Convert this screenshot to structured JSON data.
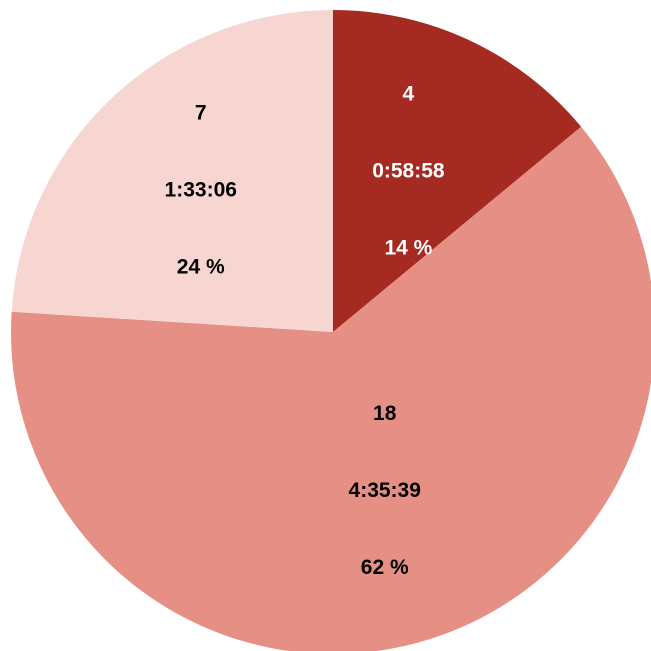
{
  "chart_data": {
    "type": "pie",
    "slices": [
      {
        "count": "4",
        "duration": "0:58:58",
        "percent_label": "14 %",
        "value": 14,
        "color": "#a52a22",
        "text_color": "#ffffff"
      },
      {
        "count": "18",
        "duration": "4:35:39",
        "percent_label": "62 %",
        "value": 62,
        "color": "#e68f84",
        "text_color": "#000000"
      },
      {
        "count": "7",
        "duration": "1:33:06",
        "percent_label": "24 %",
        "value": 24,
        "color": "#f7d6d2",
        "text_color": "#000000"
      }
    ],
    "start_angle_deg": 0,
    "direction": "clockwise"
  }
}
